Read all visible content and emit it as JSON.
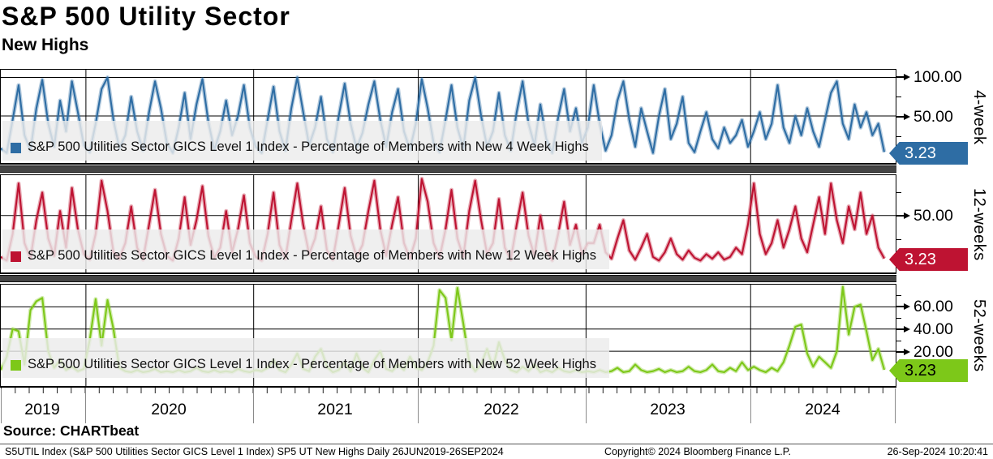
{
  "header": {
    "title": "S&P 500 Utility Sector",
    "subtitle": "New Highs"
  },
  "source_label": "Source: CHARTbeat",
  "footer": {
    "left": "S5UTIL Index (S&P 500 Utilities Sector GICS Level 1 Index) SP5 UT New Highs  Daily 26JUN2019-26SEP2024",
    "center": "Copyright© 2024 Bloomberg Finance L.P.",
    "right": "26-Sep-2024 10:20:41"
  },
  "x_axis": {
    "years": [
      "2019",
      "2020",
      "2021",
      "2022",
      "2023",
      "2024"
    ],
    "year_boundaries_frac": [
      0.0951,
      0.2826,
      0.4665,
      0.654,
      0.8379
    ],
    "range": "26JUN2019-26SEP2024",
    "frequency": "Daily"
  },
  "chart_data": [
    {
      "type": "line",
      "name": "4-week-new-highs",
      "legend": "S&P 500 Utilities Sector GICS Level 1 Index - Percentage of Members with New 4 Week Highs",
      "axis_label": "4-week",
      "color": "#2e6da4",
      "tag_text_color": "#ffffff",
      "last_value_label": "3.23",
      "last_value": 3.23,
      "ylim": [
        -11,
        110
      ],
      "yticks": [
        {
          "label": "100.00",
          "value": 100
        },
        {
          "label": "50.00",
          "value": 50
        }
      ],
      "x_unit": "approx weekly samples, 26JUN2019 to 26SEP2024",
      "values": [
        8,
        2,
        45,
        90,
        25,
        5,
        60,
        97,
        40,
        10,
        70,
        30,
        95,
        55,
        12,
        3,
        40,
        85,
        100,
        45,
        8,
        25,
        75,
        30,
        5,
        55,
        95,
        60,
        15,
        2,
        35,
        80,
        20,
        65,
        98,
        42,
        6,
        30,
        70,
        25,
        50,
        90,
        35,
        10,
        2,
        45,
        88,
        30,
        5,
        60,
        100,
        55,
        12,
        35,
        75,
        20,
        3,
        50,
        92,
        40,
        8,
        28,
        65,
        95,
        45,
        10,
        55,
        85,
        30,
        6,
        40,
        98,
        60,
        15,
        3,
        45,
        90,
        35,
        8,
        70,
        100,
        50,
        10,
        30,
        80,
        25,
        5,
        55,
        95,
        40,
        12,
        65,
        20,
        2,
        48,
        85,
        30,
        60,
        15,
        35,
        90,
        40,
        5,
        25,
        70,
        95,
        45,
        10,
        60,
        30,
        2,
        50,
        85,
        20,
        40,
        75,
        15,
        3,
        30,
        55,
        20,
        8,
        35,
        15,
        25,
        45,
        10,
        30,
        55,
        20,
        40,
        90,
        35,
        15,
        50,
        25,
        60,
        30,
        10,
        45,
        80,
        95,
        40,
        20,
        65,
        35,
        55,
        25,
        40,
        3.23
      ]
    },
    {
      "type": "line",
      "name": "12-week-new-highs",
      "legend": "S&P 500 Utilities Sector GICS Level 1 Index - Percentage of Members with New 12 Week Highs",
      "axis_label": "12-weeks",
      "color": "#be1332",
      "tag_text_color": "#ffffff",
      "last_value_label": "3.23",
      "last_value": 3.23,
      "ylim": [
        -12,
        94
      ],
      "yticks": [
        {
          "label": "50.00",
          "value": 50
        }
      ],
      "x_unit": "approx weekly samples, 26JUN2019 to 26SEP2024",
      "values": [
        5,
        1,
        30,
        85,
        20,
        3,
        45,
        75,
        25,
        6,
        55,
        15,
        80,
        35,
        8,
        2,
        30,
        88,
        55,
        10,
        3,
        20,
        60,
        15,
        2,
        40,
        78,
        30,
        6,
        1,
        25,
        70,
        18,
        45,
        82,
        28,
        4,
        15,
        55,
        10,
        35,
        72,
        20,
        5,
        1,
        30,
        75,
        18,
        3,
        45,
        85,
        40,
        8,
        25,
        60,
        12,
        2,
        40,
        80,
        28,
        5,
        18,
        55,
        88,
        35,
        6,
        40,
        70,
        20,
        3,
        25,
        90,
        65,
        20,
        4,
        35,
        78,
        25,
        5,
        55,
        88,
        45,
        8,
        20,
        68,
        15,
        2,
        40,
        75,
        28,
        6,
        50,
        12,
        1,
        30,
        65,
        18,
        40,
        8,
        20,
        20,
        40,
        10,
        3,
        25,
        45,
        12,
        2,
        15,
        30,
        5,
        1,
        10,
        25,
        8,
        2,
        12,
        4,
        1,
        8,
        3,
        10,
        2,
        5,
        15,
        8,
        40,
        85,
        30,
        8,
        20,
        45,
        15,
        35,
        60,
        25,
        10,
        40,
        70,
        30,
        85,
        45,
        20,
        60,
        35,
        75,
        30,
        50,
        15,
        3.23
      ]
    },
    {
      "type": "line",
      "name": "52-week-new-highs",
      "legend": "S&P 500 Utilities Sector GICS Level 1 Index - Percentage of Members with New 52 Week Highs",
      "axis_label": "52-weeks",
      "color": "#7dc819",
      "tag_text_color": "#000000",
      "last_value_label": "3.23",
      "last_value": 3.23,
      "ylim": [
        -11.4,
        80
      ],
      "yticks": [
        {
          "label": "60.00",
          "value": 60
        },
        {
          "label": "40.00",
          "value": 40
        },
        {
          "label": "20.00",
          "value": 20
        }
      ],
      "x_unit": "approx weekly samples, 26JUN2019 to 26SEP2024",
      "values": [
        3,
        15,
        40,
        38,
        8,
        57,
        65,
        68,
        20,
        5,
        12,
        3,
        6,
        2,
        4,
        30,
        67,
        25,
        66,
        40,
        5,
        2,
        1,
        3,
        1,
        2,
        4,
        1,
        2,
        1,
        3,
        1,
        2,
        5,
        2,
        1,
        3,
        1,
        2,
        1,
        4,
        2,
        1,
        3,
        2,
        5,
        12,
        3,
        1,
        8,
        18,
        4,
        2,
        15,
        22,
        6,
        1,
        3,
        10,
        2,
        18,
        5,
        1,
        12,
        20,
        4,
        2,
        8,
        3,
        15,
        5,
        3,
        10,
        25,
        75,
        68,
        30,
        77,
        45,
        10,
        2,
        8,
        22,
        5,
        28,
        12,
        3,
        1,
        6,
        2,
        8,
        1,
        3,
        1,
        5,
        2,
        1,
        3,
        1,
        2,
        1,
        3,
        1,
        2,
        5,
        1,
        2,
        8,
        3,
        1,
        2,
        4,
        1,
        3,
        1,
        2,
        6,
        2,
        1,
        3,
        8,
        2,
        1,
        5,
        2,
        10,
        3,
        6,
        3,
        1,
        5,
        2,
        10,
        25,
        42,
        44,
        18,
        6,
        15,
        10,
        5,
        20,
        78,
        35,
        60,
        62,
        38,
        12,
        22,
        3.23
      ]
    }
  ]
}
